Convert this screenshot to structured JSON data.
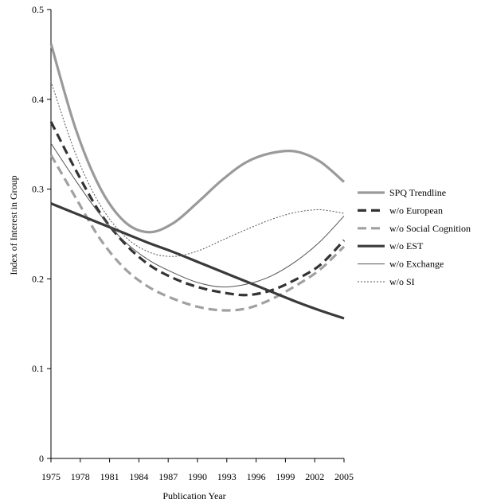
{
  "chart_data": {
    "type": "line",
    "title": "",
    "xlabel": "Publication Year",
    "ylabel": "Index of Interest in Group",
    "xlim": [
      1975,
      2005
    ],
    "ylim": [
      0,
      0.5
    ],
    "x_ticks": [
      1975,
      1978,
      1981,
      1984,
      1987,
      1990,
      1993,
      1996,
      1999,
      2002,
      2005
    ],
    "y_ticks": [
      0,
      0.1,
      0.2,
      0.3,
      0.4,
      0.5
    ],
    "y_tick_labels": [
      "0",
      "0.1",
      "0.2",
      "0.3",
      "0.4",
      "0.5"
    ],
    "grid": false,
    "legend_position": "right",
    "x": [
      1975,
      1977.5,
      1980,
      1982.5,
      1985,
      1987.5,
      1990,
      1992.5,
      1995,
      1997.5,
      2000,
      2002.5,
      2005
    ],
    "series": [
      {
        "name": "SPQ Trendline",
        "style": "thick-solid",
        "color": "#9a9a9a",
        "values": [
          0.462,
          0.368,
          0.302,
          0.264,
          0.252,
          0.262,
          0.285,
          0.31,
          0.33,
          0.34,
          0.342,
          0.331,
          0.308
        ]
      },
      {
        "name": "w/o European",
        "style": "thick-dashed",
        "color": "#333333",
        "values": [
          0.375,
          0.322,
          0.274,
          0.24,
          0.216,
          0.201,
          0.191,
          0.185,
          0.182,
          0.187,
          0.199,
          0.215,
          0.243
        ]
      },
      {
        "name": "w/o Social Cognition",
        "style": "thick-dashed",
        "color": "#a0a0a0",
        "values": [
          0.338,
          0.291,
          0.245,
          0.212,
          0.191,
          0.178,
          0.169,
          0.165,
          0.167,
          0.177,
          0.192,
          0.21,
          0.236
        ]
      },
      {
        "name": "w/o EST",
        "style": "thick-solid",
        "color": "#3a3a3a",
        "values": [
          0.284,
          0.273,
          0.262,
          0.251,
          0.24,
          0.23,
          0.219,
          0.208,
          0.197,
          0.186,
          0.175,
          0.165,
          0.156
        ]
      },
      {
        "name": "w/o Exchange",
        "style": "thin-solid",
        "color": "#555555",
        "values": [
          0.351,
          0.31,
          0.272,
          0.242,
          0.221,
          0.207,
          0.196,
          0.191,
          0.194,
          0.203,
          0.219,
          0.241,
          0.27
        ]
      },
      {
        "name": "w/o SI",
        "style": "thin-dotted",
        "color": "#555555",
        "values": [
          0.42,
          0.34,
          0.283,
          0.248,
          0.23,
          0.225,
          0.231,
          0.243,
          0.255,
          0.266,
          0.274,
          0.277,
          0.273
        ]
      }
    ]
  }
}
